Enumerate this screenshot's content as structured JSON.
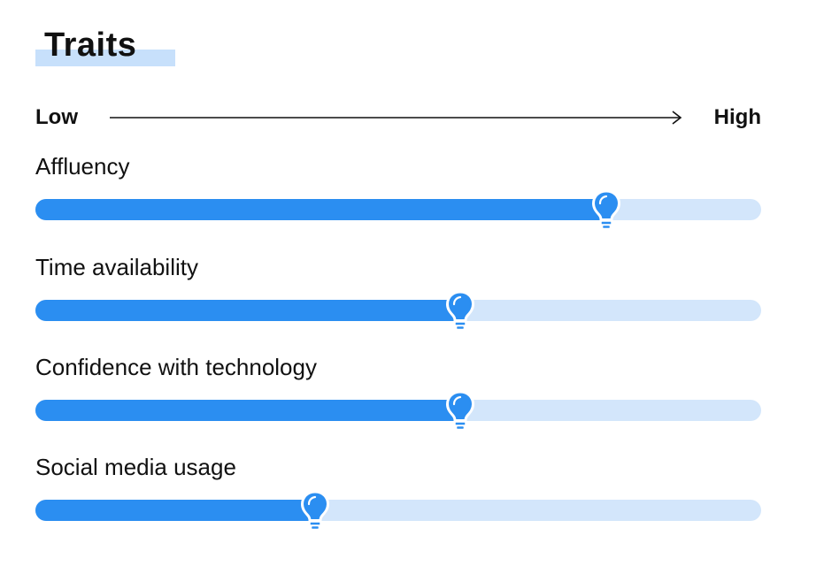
{
  "title": "Traits",
  "scale": {
    "low_label": "Low",
    "high_label": "High"
  },
  "traits": [
    {
      "label": "Affluency",
      "level": 0.786
    },
    {
      "label": "Time availability",
      "level": 0.585
    },
    {
      "label": "Confidence with technology",
      "level": 0.585
    },
    {
      "label": "Social media usage",
      "level": 0.385
    }
  ],
  "colors": {
    "fill": "#2b8ef1",
    "track": "#d3e6fb",
    "title_highlight": "#c7e0fb",
    "text": "#111111"
  },
  "icons": {
    "marker": "lightbulb-icon",
    "scale": "arrow-right-icon"
  }
}
